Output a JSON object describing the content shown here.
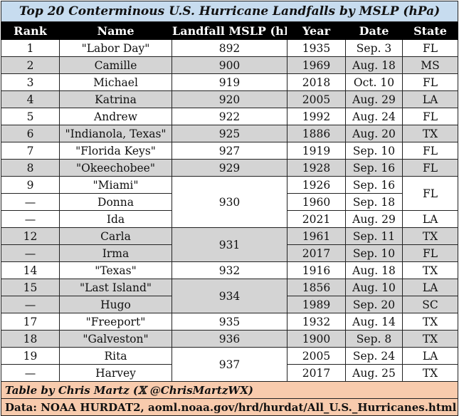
{
  "title": "Top 20 Conterminous U.S. Hurricane Landfalls by MSLP (hPa)",
  "headers": {
    "rank": "Rank",
    "name": "Name",
    "mslp": "Landfall MSLP (hPa)",
    "year": "Year",
    "date": "Date",
    "state": "State"
  },
  "rows": [
    {
      "rank": "1",
      "name": "\"Labor Day\"",
      "mslp": "892",
      "year": "1935",
      "date": "Sep. 3",
      "state": "FL"
    },
    {
      "rank": "2",
      "name": "Camille",
      "mslp": "900",
      "year": "1969",
      "date": "Aug. 18",
      "state": "MS"
    },
    {
      "rank": "3",
      "name": "Michael",
      "mslp": "919",
      "year": "2018",
      "date": "Oct. 10",
      "state": "FL"
    },
    {
      "rank": "4",
      "name": "Katrina",
      "mslp": "920",
      "year": "2005",
      "date": "Aug. 29",
      "state": "LA"
    },
    {
      "rank": "5",
      "name": "Andrew",
      "mslp": "922",
      "year": "1992",
      "date": "Aug. 24",
      "state": "FL"
    },
    {
      "rank": "6",
      "name": "\"Indianola, Texas\"",
      "mslp": "925",
      "year": "1886",
      "date": "Aug. 20",
      "state": "TX"
    },
    {
      "rank": "7",
      "name": "\"Florida Keys\"",
      "mslp": "927",
      "year": "1919",
      "date": "Sep. 10",
      "state": "FL"
    },
    {
      "rank": "8",
      "name": "\"Okeechobee\"",
      "mslp": "929",
      "year": "1928",
      "date": "Sep. 16",
      "state": "FL"
    },
    {
      "rank": "9",
      "name": "\"Miami\"",
      "mslp": "930",
      "year": "1926",
      "date": "Sep. 16",
      "state": "FL"
    },
    {
      "rank": "—",
      "name": "Donna",
      "mslp": "930",
      "year": "1960",
      "date": "Sep. 18",
      "state": "FL"
    },
    {
      "rank": "—",
      "name": "Ida",
      "mslp": "930",
      "year": "2021",
      "date": "Aug. 29",
      "state": "LA"
    },
    {
      "rank": "12",
      "name": "Carla",
      "mslp": "931",
      "year": "1961",
      "date": "Sep. 11",
      "state": "TX"
    },
    {
      "rank": "—",
      "name": "Irma",
      "mslp": "931",
      "year": "2017",
      "date": "Sep. 10",
      "state": "FL"
    },
    {
      "rank": "14",
      "name": "\"Texas\"",
      "mslp": "932",
      "year": "1916",
      "date": "Aug. 18",
      "state": "TX"
    },
    {
      "rank": "15",
      "name": "\"Last Island\"",
      "mslp": "934",
      "year": "1856",
      "date": "Aug. 10",
      "state": "LA"
    },
    {
      "rank": "—",
      "name": "Hugo",
      "mslp": "934",
      "year": "1989",
      "date": "Sep. 20",
      "state": "SC"
    },
    {
      "rank": "17",
      "name": "\"Freeport\"",
      "mslp": "935",
      "year": "1932",
      "date": "Aug. 14",
      "state": "TX"
    },
    {
      "rank": "18",
      "name": "\"Galveston\"",
      "mslp": "936",
      "year": "1900",
      "date": "Sep. 8",
      "state": "TX"
    },
    {
      "rank": "19",
      "name": "Rita",
      "mslp": "937",
      "year": "2005",
      "date": "Sep. 24",
      "state": "LA"
    },
    {
      "rank": "—",
      "name": "Harvey",
      "mslp": "937",
      "year": "2017",
      "date": "Aug. 25",
      "state": "TX"
    }
  ],
  "footer": {
    "credit": "Table by Chris Martz (𝕏 @ChrisMartzWX)",
    "source": "Data: NOAA HURDAT2, aoml.noaa.gov/hrd/hurdat/All_U.S._Hurricanes.html"
  },
  "colors": {
    "title_bg": "#c7dcef",
    "header_bg": "#000000",
    "stripe_gray": "#d4d4d4",
    "footer_bg": "#f8cbad"
  }
}
